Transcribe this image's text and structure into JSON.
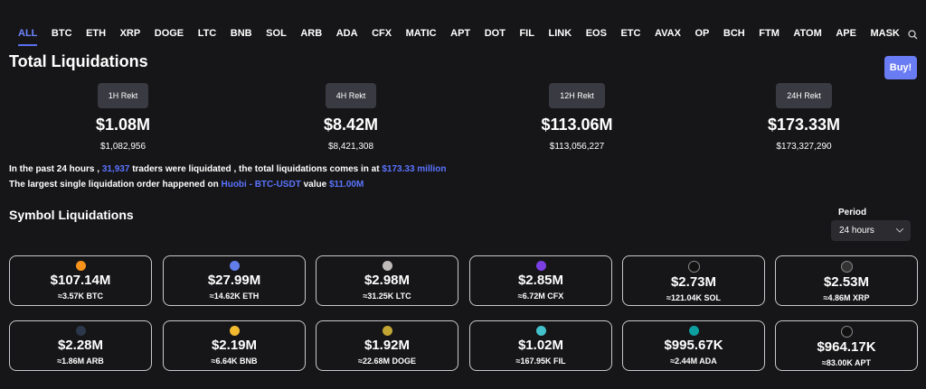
{
  "tabs": [
    "ALL",
    "BTC",
    "ETH",
    "XRP",
    "DOGE",
    "LTC",
    "BNB",
    "SOL",
    "ARB",
    "ADA",
    "CFX",
    "MATIC",
    "APT",
    "DOT",
    "FIL",
    "LINK",
    "EOS",
    "ETC",
    "AVAX",
    "OP",
    "BCH",
    "FTM",
    "ATOM",
    "APE",
    "MASK"
  ],
  "title": "Total Liquidations",
  "buy_button": "Buy!",
  "rekt": [
    {
      "label": "1H Rekt",
      "value": "$1.08M",
      "exact": "$1,082,956"
    },
    {
      "label": "4H Rekt",
      "value": "$8.42M",
      "exact": "$8,421,308"
    },
    {
      "label": "12H Rekt",
      "value": "$113.06M",
      "exact": "$113,056,227"
    },
    {
      "label": "24H Rekt",
      "value": "$173.33M",
      "exact": "$173,327,290"
    }
  ],
  "summary": [
    [
      "In the past 24 hours ,",
      "31,937",
      "traders were liquidated , the total liquidations comes in at",
      "$173.33 million"
    ],
    [
      "The largest single liquidation order happened on",
      "Huobi - BTC-USDT",
      "value",
      "$11.00M"
    ]
  ],
  "symbol_title": "Symbol Liquidations",
  "period_label": "Period",
  "period_value": "24 hours",
  "symbols": [
    {
      "value": "$107.14M",
      "amount": "≈3.57K BTC"
    },
    {
      "value": "$27.99M",
      "amount": "≈14.62K ETH"
    },
    {
      "value": "$2.98M",
      "amount": "≈31.25K LTC"
    },
    {
      "value": "$2.85M",
      "amount": "≈6.72M CFX"
    },
    {
      "value": "$2.73M",
      "amount": "≈121.04K SOL"
    },
    {
      "value": "$2.53M",
      "amount": "≈4.86M XRP"
    },
    {
      "value": "$2.28M",
      "amount": "≈1.86M ARB"
    },
    {
      "value": "$2.19M",
      "amount": "≈6.64K BNB"
    },
    {
      "value": "$1.92M",
      "amount": "≈22.68M DOGE"
    },
    {
      "value": "$1.02M",
      "amount": "≈167.95K FIL"
    },
    {
      "value": "$995.67K",
      "amount": "≈2.44M ADA"
    },
    {
      "value": "$964.17K",
      "amount": "≈83.00K APT"
    }
  ]
}
